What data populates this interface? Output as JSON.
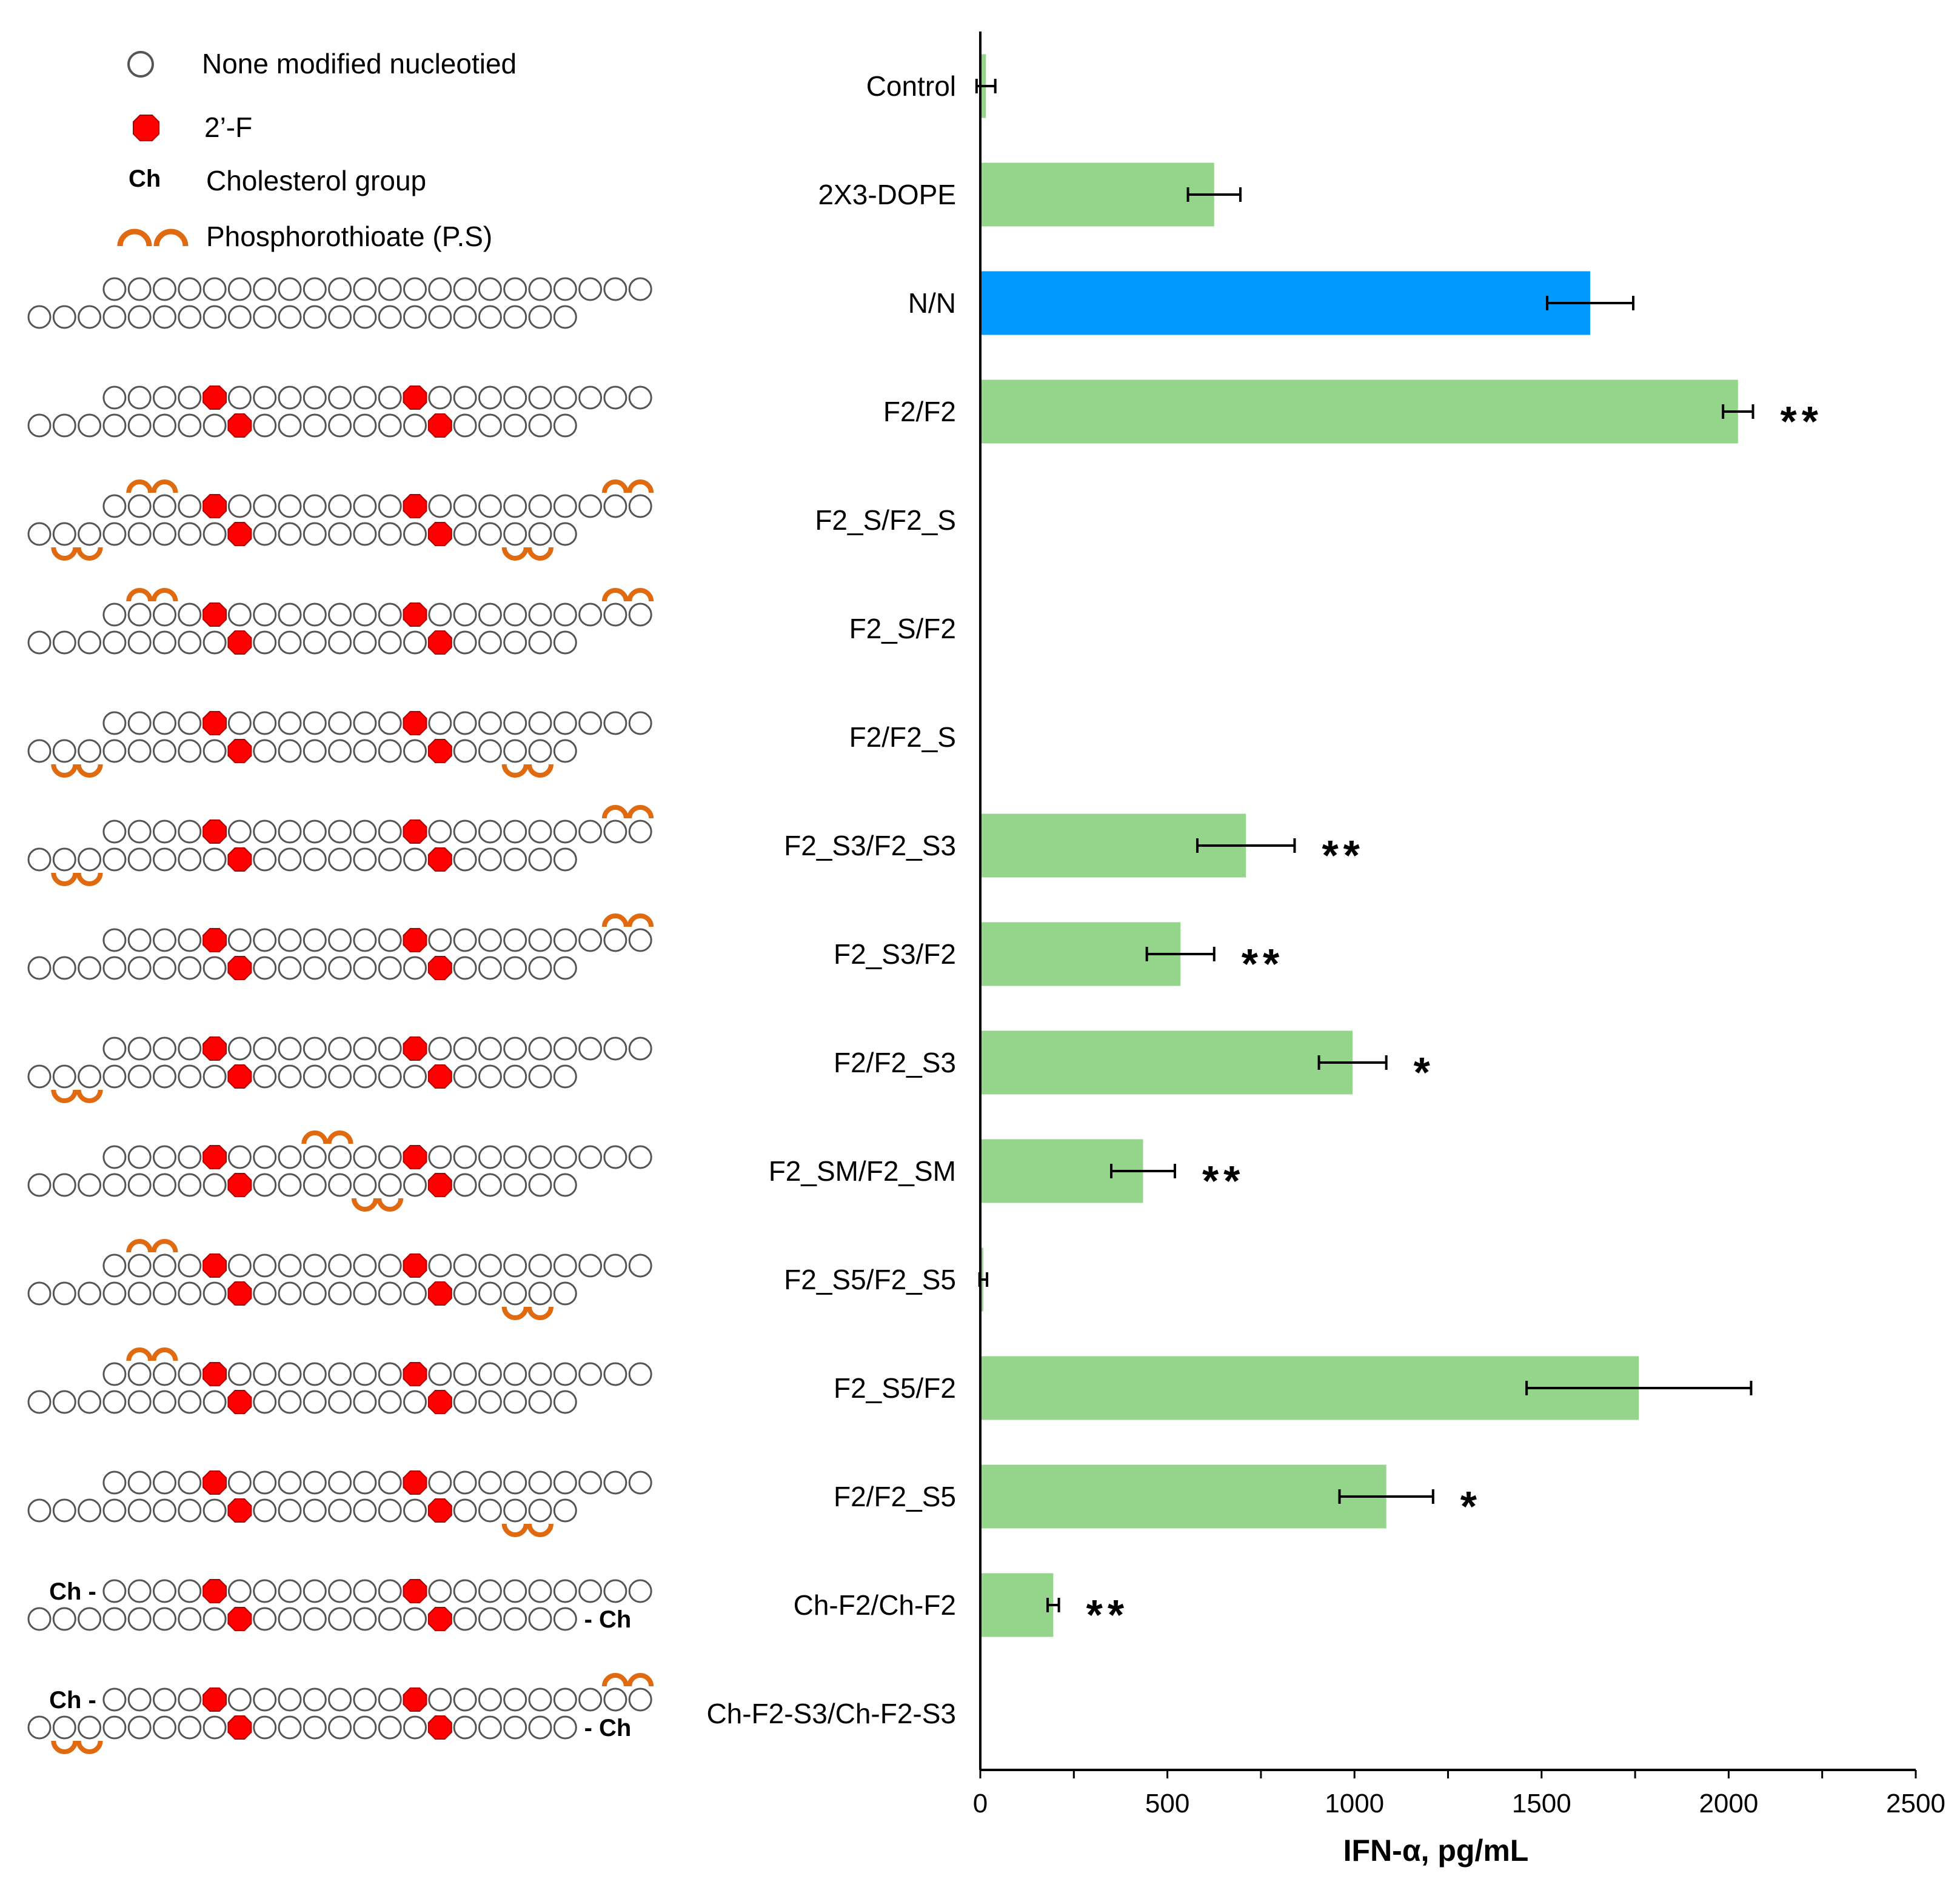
{
  "legend": {
    "items": [
      {
        "symbol": "open-circle",
        "label": "None modified nucleotied"
      },
      {
        "symbol": "red-octagon",
        "label": "2’-F"
      },
      {
        "symbol": "ch-text",
        "label": "Cholesterol group",
        "symbol_text": "Ch"
      },
      {
        "symbol": "ps-arcs",
        "label": "Phosphorothioate (P.S)"
      }
    ]
  },
  "colors": {
    "bar_default": "#95d58b",
    "bar_highlight": "#0099ff",
    "nucleotide_fill": "#ffffff",
    "nucleotide_stroke": "#555555",
    "modified_fill": "#ff0000",
    "ps_arc": "#e06a10"
  },
  "chart_data": {
    "type": "bar",
    "orientation": "horizontal",
    "xlabel": "IFN-α, pg/mL",
    "xlim": [
      0,
      2500
    ],
    "xticks": [
      0,
      500,
      1000,
      1500,
      2000,
      2500
    ],
    "categories": [
      "Control",
      "2X3-DOPE",
      "N/N",
      "F2/F2",
      "F2_S/F2_S",
      "F2_S/F2",
      "F2/F2_S",
      "F2_S3/F2_S3",
      "F2_S3/F2",
      "F2/F2_S3",
      "F2_SM/F2_SM",
      "F2_S5/F2_S5",
      "F2_S5/F2",
      "F2/F2_S5",
      "Ch-F2/Ch-F2",
      "Ch-F2-S3/Ch-F2-S3"
    ],
    "values": [
      15,
      625,
      1630,
      2025,
      0,
      0,
      0,
      710,
      535,
      995,
      435,
      8,
      1760,
      1085,
      195,
      0
    ],
    "errors": [
      25,
      70,
      115,
      40,
      0,
      0,
      0,
      130,
      90,
      90,
      85,
      10,
      300,
      125,
      15,
      0
    ],
    "significance": [
      "",
      "",
      "",
      "**",
      "",
      "",
      "",
      "**",
      "**",
      "*",
      "**",
      "",
      "",
      "*",
      "**",
      ""
    ],
    "highlight_index": 2,
    "diagrams": [
      {
        "top": {
          "count": 22,
          "offset": 3,
          "f2": [],
          "ps": [],
          "ch": false
        },
        "bottom": {
          "count": 22,
          "offset": 0,
          "f2": [],
          "ps": [],
          "ch": false
        }
      },
      {
        "top": {
          "count": 22,
          "offset": 3,
          "f2": [
            4,
            12
          ],
          "ps": [],
          "ch": false
        },
        "bottom": {
          "count": 22,
          "offset": 0,
          "f2": [
            8,
            16
          ],
          "ps": [],
          "ch": false
        }
      },
      {
        "top": {
          "count": 22,
          "offset": 3,
          "f2": [
            4,
            12
          ],
          "ps": [
            1,
            20
          ],
          "ch": false
        },
        "bottom": {
          "count": 22,
          "offset": 0,
          "f2": [
            8,
            16
          ],
          "ps": [
            1,
            19
          ],
          "ch": false
        }
      },
      {
        "top": {
          "count": 22,
          "offset": 3,
          "f2": [
            4,
            12
          ],
          "ps": [
            1,
            20
          ],
          "ch": false
        },
        "bottom": {
          "count": 22,
          "offset": 0,
          "f2": [
            8,
            16
          ],
          "ps": [],
          "ch": false
        }
      },
      {
        "top": {
          "count": 22,
          "offset": 3,
          "f2": [
            4,
            12
          ],
          "ps": [],
          "ch": false
        },
        "bottom": {
          "count": 22,
          "offset": 0,
          "f2": [
            8,
            16
          ],
          "ps": [
            1,
            19
          ],
          "ch": false
        }
      },
      {
        "top": {
          "count": 22,
          "offset": 3,
          "f2": [
            4,
            12
          ],
          "ps": [
            20
          ],
          "ch": false
        },
        "bottom": {
          "count": 22,
          "offset": 0,
          "f2": [
            8,
            16
          ],
          "ps": [
            1
          ],
          "ch": false
        }
      },
      {
        "top": {
          "count": 22,
          "offset": 3,
          "f2": [
            4,
            12
          ],
          "ps": [
            20
          ],
          "ch": false
        },
        "bottom": {
          "count": 22,
          "offset": 0,
          "f2": [
            8,
            16
          ],
          "ps": [],
          "ch": false
        }
      },
      {
        "top": {
          "count": 22,
          "offset": 3,
          "f2": [
            4,
            12
          ],
          "ps": [],
          "ch": false
        },
        "bottom": {
          "count": 22,
          "offset": 0,
          "f2": [
            8,
            16
          ],
          "ps": [
            1
          ],
          "ch": false
        }
      },
      {
        "top": {
          "count": 22,
          "offset": 3,
          "f2": [
            4,
            12
          ],
          "ps": [
            8
          ],
          "ch": false
        },
        "bottom": {
          "count": 22,
          "offset": 0,
          "f2": [
            8,
            16
          ],
          "ps": [
            13
          ],
          "ch": false
        }
      },
      {
        "top": {
          "count": 22,
          "offset": 3,
          "f2": [
            4,
            12
          ],
          "ps": [
            1
          ],
          "ch": false
        },
        "bottom": {
          "count": 22,
          "offset": 0,
          "f2": [
            8,
            16
          ],
          "ps": [
            19
          ],
          "ch": false
        }
      },
      {
        "top": {
          "count": 22,
          "offset": 3,
          "f2": [
            4,
            12
          ],
          "ps": [
            1
          ],
          "ch": false
        },
        "bottom": {
          "count": 22,
          "offset": 0,
          "f2": [
            8,
            16
          ],
          "ps": [],
          "ch": false
        }
      },
      {
        "top": {
          "count": 22,
          "offset": 3,
          "f2": [
            4,
            12
          ],
          "ps": [],
          "ch": false
        },
        "bottom": {
          "count": 22,
          "offset": 0,
          "f2": [
            8,
            16
          ],
          "ps": [
            19
          ],
          "ch": false
        }
      },
      {
        "top": {
          "count": 22,
          "offset": 3,
          "f2": [
            4,
            12
          ],
          "ps": [],
          "ch": true
        },
        "bottom": {
          "count": 22,
          "offset": 0,
          "f2": [
            8,
            16
          ],
          "ps": [],
          "ch": true
        }
      },
      {
        "top": {
          "count": 22,
          "offset": 3,
          "f2": [
            4,
            12
          ],
          "ps": [
            20
          ],
          "ch": true
        },
        "bottom": {
          "count": 22,
          "offset": 0,
          "f2": [
            8,
            16
          ],
          "ps": [
            1
          ],
          "ch": true
        }
      }
    ]
  }
}
